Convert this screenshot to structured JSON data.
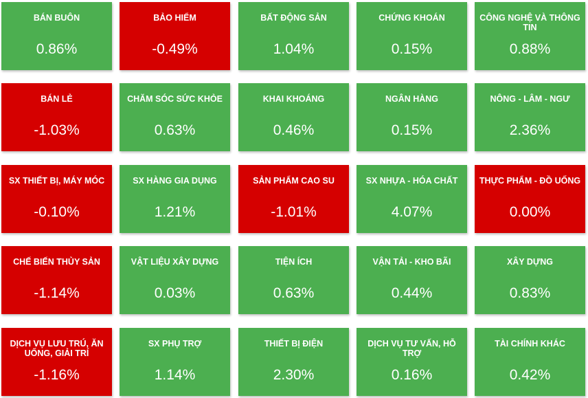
{
  "sectors": [
    {
      "name": "BÁN BUÔN",
      "change": "0.86%",
      "trend": "up"
    },
    {
      "name": "BẢO HIỂM",
      "change": "-0.49%",
      "trend": "down"
    },
    {
      "name": "BẤT ĐỘNG SẢN",
      "change": "1.04%",
      "trend": "up"
    },
    {
      "name": "CHỨNG KHOÁN",
      "change": "0.15%",
      "trend": "up"
    },
    {
      "name": "CÔNG NGHỆ VÀ THÔNG TIN",
      "change": "0.88%",
      "trend": "up"
    },
    {
      "name": "BÁN LẺ",
      "change": "-1.03%",
      "trend": "down"
    },
    {
      "name": "CHĂM SÓC SỨC KHỎE",
      "change": "0.63%",
      "trend": "up"
    },
    {
      "name": "KHAI KHOÁNG",
      "change": "0.46%",
      "trend": "up"
    },
    {
      "name": "NGÂN HÀNG",
      "change": "0.15%",
      "trend": "up"
    },
    {
      "name": "NÔNG - LÂM - NGƯ",
      "change": "2.36%",
      "trend": "up"
    },
    {
      "name": "SX THIẾT BỊ, MÁY MÓC",
      "change": "-0.10%",
      "trend": "down"
    },
    {
      "name": "SX HÀNG GIA DỤNG",
      "change": "1.21%",
      "trend": "up"
    },
    {
      "name": "SẢN PHẨM CAO SU",
      "change": "-1.01%",
      "trend": "down"
    },
    {
      "name": "SX NHỰA - HÓA CHẤT",
      "change": "4.07%",
      "trend": "up"
    },
    {
      "name": "THỰC PHẨM - ĐỒ UỐNG",
      "change": "0.00%",
      "trend": "down"
    },
    {
      "name": "CHẾ BIẾN THỦY SẢN",
      "change": "-1.14%",
      "trend": "down"
    },
    {
      "name": "VẬT LIỆU XÂY DỰNG",
      "change": "0.03%",
      "trend": "up"
    },
    {
      "name": "TIỆN ÍCH",
      "change": "0.63%",
      "trend": "up"
    },
    {
      "name": "VẬN TẢI - KHO BÃI",
      "change": "0.44%",
      "trend": "up"
    },
    {
      "name": "XÂY DỰNG",
      "change": "0.83%",
      "trend": "up"
    },
    {
      "name": "DỊCH VỤ LƯU TRÚ, ĂN UỐNG, GIẢI TRÍ",
      "change": "-1.16%",
      "trend": "down"
    },
    {
      "name": "SX PHỤ TRỢ",
      "change": "1.14%",
      "trend": "up"
    },
    {
      "name": "THIẾT BỊ ĐIỆN",
      "change": "2.30%",
      "trend": "up"
    },
    {
      "name": "DỊCH VỤ TƯ VẤN, HỖ TRỢ",
      "change": "0.16%",
      "trend": "up"
    },
    {
      "name": "TÀI CHÍNH KHÁC",
      "change": "0.42%",
      "trend": "up"
    }
  ],
  "colors": {
    "up": "#4caf50",
    "down": "#d50000",
    "text": "#ffffff"
  }
}
